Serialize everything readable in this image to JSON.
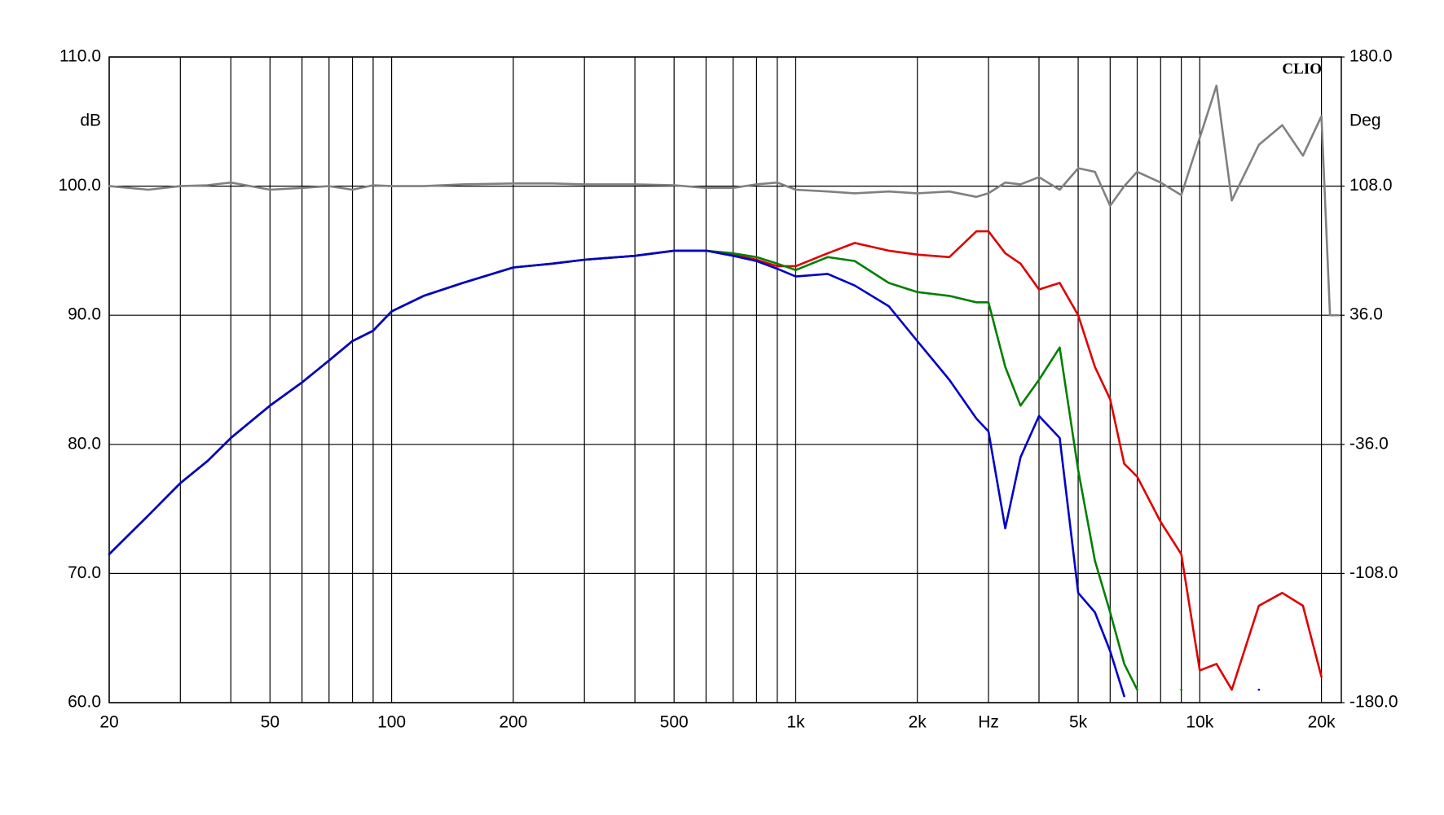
{
  "chart_data": {
    "type": "line",
    "annotation": "CLIO",
    "ylabel": "dB",
    "y2label": "Deg",
    "xscale": "log",
    "xlim": [
      20,
      22400
    ],
    "xticks": [
      20,
      50,
      100,
      200,
      500,
      {
        "value": 1000,
        "label": "1k"
      },
      {
        "value": 2000,
        "label": "2k"
      },
      {
        "value": 3000,
        "label": "Hz"
      },
      {
        "value": 5000,
        "label": "5k"
      },
      {
        "value": 10000,
        "label": "10k"
      },
      {
        "value": 20000,
        "label": "20k"
      }
    ],
    "xminor": [
      30,
      40,
      60,
      70,
      80,
      90,
      300,
      400,
      600,
      700,
      800,
      900,
      4000,
      6000,
      7000,
      8000,
      9000
    ],
    "ylim": [
      60,
      110
    ],
    "yticks": [
      {
        "value": 60,
        "label": "60.0"
      },
      {
        "value": 70,
        "label": "70.0"
      },
      {
        "value": 80,
        "label": "80.0"
      },
      {
        "value": 90,
        "label": "90.0"
      },
      {
        "value": 100,
        "label": "100.0"
      },
      {
        "value": 110,
        "label": "110.0"
      }
    ],
    "y2lim": [
      -180,
      180
    ],
    "y2ticks": [
      {
        "value": -180,
        "label": "-180.0"
      },
      {
        "value": -108,
        "label": "-108.0"
      },
      {
        "value": -36,
        "label": "-36.0"
      },
      {
        "value": 36,
        "label": "36.0"
      },
      {
        "value": 108,
        "label": "108.0"
      },
      {
        "value": 180,
        "label": "180.0"
      }
    ],
    "grid": true,
    "x": [
      20,
      25,
      30,
      35,
      40,
      50,
      60,
      70,
      80,
      90,
      100,
      120,
      150,
      200,
      250,
      300,
      400,
      500,
      600,
      700,
      800,
      900,
      1000,
      1200,
      1400,
      1700,
      2000,
      2400,
      2800,
      3000,
      3300,
      3600,
      4000,
      4500,
      5000,
      5500,
      6000,
      6500,
      7000,
      8000,
      9000,
      10000,
      11000,
      12000,
      14000,
      16000,
      18000,
      20000,
      21000,
      22000
    ],
    "series": [
      {
        "color": "#808080",
        "axis": "y2",
        "values": [
          108,
          106,
          108,
          108.5,
          110,
          106,
          107,
          108,
          106,
          108.5,
          108,
          108,
          109,
          109.5,
          109.5,
          109,
          109,
          108.5,
          107,
          107,
          109,
          110,
          106,
          105,
          104,
          105,
          104,
          105,
          102,
          104,
          110,
          109,
          113,
          106,
          118,
          116,
          97,
          108,
          116,
          110,
          103,
          135,
          164,
          100,
          131,
          142,
          125,
          147,
          36,
          36
        ]
      },
      {
        "color": "#e00000",
        "values": [
          71.5,
          74.5,
          77,
          78.7,
          80.5,
          83,
          84.8,
          86.5,
          88,
          88.8,
          90.3,
          91.5,
          92.5,
          93.7,
          94,
          94.3,
          94.6,
          95,
          95,
          94.7,
          94.3,
          93.8,
          93.8,
          94.8,
          95.6,
          95,
          94.7,
          94.5,
          96.5,
          96.5,
          94.8,
          94,
          92,
          92.5,
          90,
          86,
          83.5,
          78.5,
          77.5,
          74,
          71.5,
          62.5,
          63,
          61,
          67.5,
          68.5,
          67.5,
          62,
          null,
          null
        ]
      },
      {
        "color": "#008000",
        "values": [
          71.5,
          74.5,
          77,
          78.7,
          80.5,
          83,
          84.8,
          86.5,
          88,
          88.8,
          90.3,
          91.5,
          92.5,
          93.7,
          94,
          94.3,
          94.6,
          95,
          95,
          94.8,
          94.5,
          94,
          93.5,
          94.5,
          94.2,
          92.5,
          91.8,
          91.5,
          91,
          91,
          86,
          83,
          85,
          87.5,
          78,
          71,
          67,
          63,
          61,
          null,
          61,
          null,
          null,
          null,
          null,
          null,
          null,
          null,
          null,
          null
        ]
      },
      {
        "color": "#0000c8",
        "values": [
          71.5,
          74.5,
          77,
          78.7,
          80.5,
          83,
          84.8,
          86.5,
          88,
          88.8,
          90.3,
          91.5,
          92.5,
          93.7,
          94,
          94.3,
          94.6,
          95,
          95,
          94.6,
          94.2,
          93.6,
          93,
          93.2,
          92.3,
          90.7,
          88,
          85,
          82,
          81,
          73.5,
          79,
          82.2,
          80.5,
          68.5,
          67,
          64,
          60.5,
          null,
          null,
          null,
          null,
          null,
          null,
          61,
          null,
          null,
          null,
          null,
          null
        ]
      }
    ]
  }
}
